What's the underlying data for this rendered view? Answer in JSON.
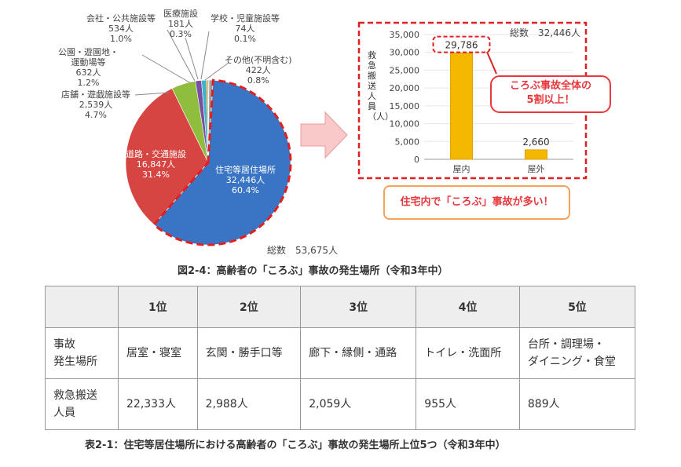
{
  "chart_data": [
    {
      "type": "pie",
      "total_label": "総数　53,675人",
      "slices": [
        {
          "name": "住宅等居住場所",
          "value_label": "32,446人",
          "percent_label": "60.4%",
          "value": 32446,
          "percent": 60.4,
          "color": "#3a74c4"
        },
        {
          "name": "道路・交通施設",
          "value_label": "16,847人",
          "percent_label": "31.4%",
          "value": 16847,
          "percent": 31.4,
          "color": "#d64541"
        },
        {
          "name": "店舗・遊戯施設等",
          "value_label": "2,539人",
          "percent_label": "4.7%",
          "value": 2539,
          "percent": 4.7,
          "color": "#8fbd3d"
        },
        {
          "name": "公園・遊園地・運動場等",
          "name_line1": "公園・遊園地・",
          "name_line2": "運動場等",
          "value_label": "632人",
          "percent_label": "1.2%",
          "value": 632,
          "percent": 1.2,
          "color": "#7a4fa3"
        },
        {
          "name": "会社・公共施設等",
          "value_label": "534人",
          "percent_label": "1.0%",
          "value": 534,
          "percent": 1.0,
          "color": "#3fb3c8"
        },
        {
          "name": "医療施設",
          "value_label": "181人",
          "percent_label": "0.3%",
          "value": 181,
          "percent": 0.3,
          "color": "#f39a2b"
        },
        {
          "name": "学校・児童施設等",
          "value_label": "74人",
          "percent_label": "0.1%",
          "value": 74,
          "percent": 0.1,
          "color": "#2e5f9e"
        },
        {
          "name": "その他(不明含む)",
          "value_label": "422人",
          "percent_label": "0.8%",
          "value": 422,
          "percent": 0.8,
          "color": "#a0a0a0"
        }
      ]
    },
    {
      "type": "bar",
      "total_label": "総数　32,446人",
      "ylabel": "救急搬送人員（人）",
      "categories": [
        "屋内",
        "屋外"
      ],
      "values": [
        29786,
        2660
      ],
      "value_labels": [
        "29,786",
        "2,660"
      ],
      "ylim": [
        0,
        35000
      ],
      "yticks": [
        "0",
        "5,000",
        "10,000",
        "15,000",
        "20,000",
        "25,000",
        "30,000",
        "35,000"
      ],
      "color": "#f5b800",
      "callout": "ころぶ事故全体の5割以上！",
      "callout_line1": "ころぶ事故全体の",
      "callout_line2": "5割以上！"
    }
  ],
  "note_box": "住宅内で「ころぶ」事故が多い！",
  "figure_caption": "図2-4：高齢者の「ころぶ」事故の発生場所（令和3年中）",
  "table": {
    "headers": [
      "",
      "1位",
      "2位",
      "3位",
      "4位",
      "5位"
    ],
    "rows": [
      {
        "label_line1": "事故",
        "label_line2": "発生場所",
        "cells": [
          "居室・寝室",
          "玄関・勝手口等",
          "廊下・縁側・通路",
          "トイレ・洗面所"
        ],
        "last_line1": "台所・調理場・",
        "last_line2": "ダイニング・食堂"
      },
      {
        "label_line1": "救急搬送",
        "label_line2": "人員",
        "cells": [
          "22,333人",
          "2,988人",
          "2,059人",
          "955人",
          "889人"
        ]
      }
    ]
  },
  "table_caption": "表2-1：住宅等居住場所における高齢者の「ころぶ」事故の発生場所上位5つ（令和3年中）"
}
